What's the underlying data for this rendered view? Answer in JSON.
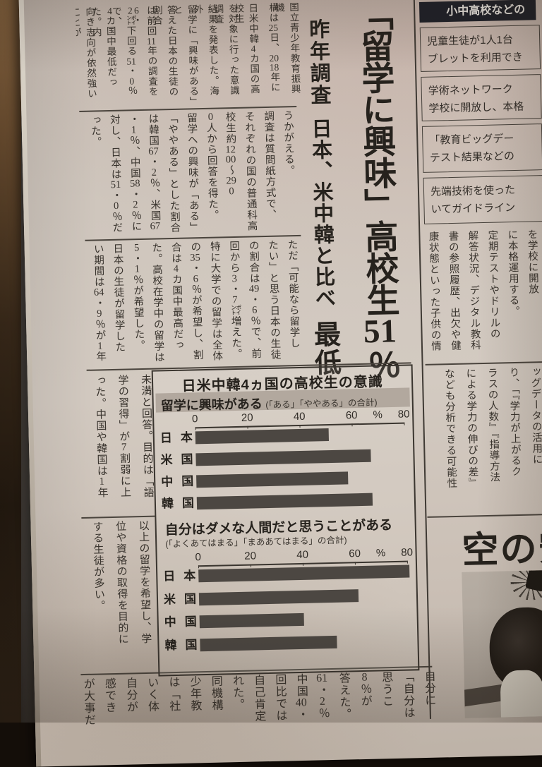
{
  "colors": {
    "paper": "#cfc6bd",
    "ink": "#332e29",
    "bar": "#4c4742",
    "subtitle_band": "#b2a89e",
    "table_header_bg": "#20222a",
    "table_header_text": "#e9e5df",
    "wood": "#6d4f31"
  },
  "main_article": {
    "headline": "「留学に興味」高校生51％",
    "subhead": {
      "kicker": "昨年調査",
      "line": "日本、米中韓と比べ",
      "emphasis": "最低"
    },
    "section1_columns": [
      "国立青少年教育振興機",
      "構は25日、2018年に",
      "日米中韓4カ国の高校生",
      "を対象に行った意識調査",
      "結果を発表した。海外",
      "留学に「興味がある」と",
      "答えた日本の生徒の割合",
      "は前回11年の調査を6・",
      "2㌽下回る51・0％で、",
      "4カ国中最低だった。内",
      "向き志向が依然強いことが"
    ],
    "section2_columns": [
      "うかがえる。",
      "調査は質問紙方式で、",
      "それぞれの国の普通科高",
      "校生約1200～290",
      "0人から回答を得た。",
      "留学への興味が「ある」",
      "「ややある」とした割合",
      "は韓国67・2％、米国67",
      "・1％、中国58・2％に",
      "対し、日本は51・0％だ",
      "った。"
    ],
    "section3_columns": [
      "ただ「可能なら留学し",
      "たい」と思う日本の生徒",
      "の割合は49・6％で、前",
      "回から3・7㌽増えた。",
      "特に大学での留学は全体",
      "の35・6％が希望し、割",
      "合は4カ国中最高だっ",
      "た。高校在学中の留学は",
      "5・1％が希望した。",
      "日本の生徒が留学した",
      "い期間は64・9％が1年"
    ],
    "section4a_columns": [
      "未満と回答。目的は「語",
      "学の習得」が7割弱に上",
      "った。中国や韓国は1年"
    ],
    "section4b_columns": [
      "以上の留学を希望し、学",
      "位や資格の取得を目的に",
      "する生徒が多い。"
    ],
    "bottom_columns": [
      "自分に",
      "「自分は",
      "思うこ",
      "8％が",
      "答えた。",
      "61・2％",
      "中国40・",
      "回比では",
      "自己肯定",
      "れた。",
      "同機構",
      "少年教",
      "は「社",
      "いく体",
      "自分が",
      "感でき",
      "が大事だ"
    ]
  },
  "chart_data": [
    {
      "type": "bar",
      "panel_title": "日米中韓4ヵ国の高校生の意識",
      "title": "留学に興味がある",
      "note": "(「ある」「ややある」の合計)",
      "categories": [
        "日本",
        "米国",
        "中国",
        "韓国"
      ],
      "values": [
        51.0,
        67.1,
        58.2,
        67.2
      ],
      "unit": "%",
      "xlim": [
        0,
        80
      ],
      "axis_labels": [
        "0",
        "20",
        "40",
        "60",
        "%",
        "80"
      ],
      "axis_pos": [
        0,
        20,
        40,
        60,
        70,
        80
      ],
      "grid": false,
      "legend": "none"
    },
    {
      "type": "bar",
      "title": "自分はダメな人間だと思うことがある",
      "note": "(「よくあてはまる」「まああてはまる」の合計)",
      "categories": [
        "日本",
        "米国",
        "中国",
        "韓国"
      ],
      "values": [
        80.8,
        61.2,
        40.0,
        52.5
      ],
      "unit": "%",
      "xlim": [
        0,
        80
      ],
      "axis_labels": [
        "0",
        "20",
        "40",
        "60",
        "%",
        "80"
      ],
      "axis_pos": [
        0,
        20,
        40,
        60,
        70,
        80
      ],
      "grid": false,
      "legend": "none"
    }
  ],
  "right_article": {
    "header": "小中高校などの",
    "table_rows": [
      {
        "line1": "児童生徒が1人1台",
        "line2": "ブレットを利用でき"
      },
      {
        "line1": "学術ネットワーク",
        "line2": "学校に開放し、本格"
      },
      {
        "line1": "「教育ビッグデー",
        "line2": "テスト結果などの"
      },
      {
        "line1": "先端技術を使った",
        "line2": "いてガイドライン"
      }
    ],
    "body_columns_a": [
      "を学校に開放",
      "に本格運用する。",
      "定期テストやドリルの",
      "解答状況、デジタル教科",
      "書の参照履歴、出欠や健",
      "康状態といった子供の情"
    ],
    "body_columns_b": [
      "ッグデータの活用に",
      "り、「『学力が上がるク",
      "ラスの人数』『指導方法",
      "による学力の伸びの差』",
      "なども分析できる可能性"
    ],
    "photo_headline": "空の安"
  }
}
